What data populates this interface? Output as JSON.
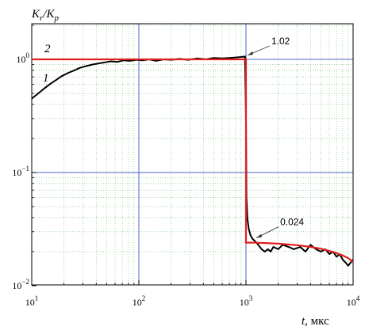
{
  "chart_data": {
    "type": "line",
    "ylabel": "K_r/K_p",
    "xlabel_var": "t",
    "xlabel_unit": ", мкс",
    "xscale": "log",
    "yscale": "log",
    "xlim": [
      10,
      10000
    ],
    "ylim": [
      0.01,
      3
    ],
    "grid": true,
    "x_ticks": [
      {
        "value": 10,
        "base": "10",
        "exp": "1"
      },
      {
        "value": 100,
        "base": "10",
        "exp": "2"
      },
      {
        "value": 1000,
        "base": "10",
        "exp": "3"
      },
      {
        "value": 10000,
        "base": "10",
        "exp": "4"
      }
    ],
    "y_ticks": [
      {
        "value": 1,
        "base": "10",
        "exp": "0"
      },
      {
        "value": 0.1,
        "base": "10",
        "exp": "−1"
      },
      {
        "value": 0.01,
        "base": "10",
        "exp": "−2"
      }
    ],
    "series": [
      {
        "label": "1",
        "color": "#000000",
        "x": [
          10,
          11.5,
          13,
          15,
          17,
          19,
          22,
          25,
          28,
          32,
          37,
          42,
          48,
          55,
          63,
          72,
          82,
          95,
          108,
          125,
          145,
          170,
          200,
          240,
          290,
          350,
          420,
          500,
          600,
          700,
          800,
          900,
          980,
          1000,
          1010,
          1030,
          1060,
          1100,
          1150,
          1200,
          1300,
          1400,
          1500,
          1600,
          1700,
          1800,
          2000,
          2200,
          2500,
          2800,
          3200,
          3600,
          4000,
          4500,
          5000,
          5500,
          6000,
          6500,
          7000,
          7500,
          8000,
          8500,
          9000,
          9500,
          10000
        ],
        "y": [
          0.45,
          0.5,
          0.55,
          0.61,
          0.66,
          0.71,
          0.76,
          0.8,
          0.84,
          0.87,
          0.9,
          0.92,
          0.94,
          0.96,
          0.95,
          0.98,
          0.97,
          0.99,
          0.98,
          1.0,
          0.97,
          1.0,
          0.99,
          1.01,
          0.99,
          1.02,
          1.0,
          1.03,
          1.02,
          1.03,
          1.04,
          1.05,
          1.06,
          0.3,
          0.06,
          0.04,
          0.032,
          0.028,
          0.026,
          0.025,
          0.023,
          0.021,
          0.02,
          0.021,
          0.02,
          0.022,
          0.021,
          0.023,
          0.022,
          0.021,
          0.022,
          0.02,
          0.023,
          0.021,
          0.02,
          0.021,
          0.019,
          0.02,
          0.018,
          0.019,
          0.017,
          0.016,
          0.015,
          0.016,
          0.017
        ]
      },
      {
        "label": "2",
        "color": "#e02020",
        "x": [
          10,
          1000,
          1000,
          1200,
          1500,
          2000,
          3000,
          4000,
          5000,
          6000,
          7000,
          8000,
          9000,
          10000
        ],
        "y": [
          1.0,
          1.0,
          0.024,
          0.024,
          0.0238,
          0.0235,
          0.0228,
          0.022,
          0.0212,
          0.0203,
          0.0194,
          0.0185,
          0.0175,
          0.0162
        ]
      }
    ],
    "annotations": [
      {
        "text": "1.02",
        "x": 1000,
        "y": 1.05
      },
      {
        "text": "0.024",
        "x": 1250,
        "y": 0.024
      }
    ]
  }
}
